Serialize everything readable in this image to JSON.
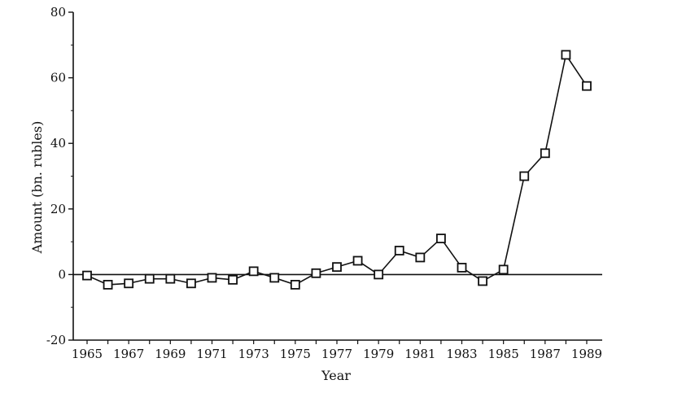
{
  "chart_data": {
    "type": "line",
    "xlabel": "Year",
    "ylabel": "Amount (bn. rubles)",
    "xlim": [
      1965,
      1989
    ],
    "ylim": [
      -20,
      80
    ],
    "x_ticks": [
      "1965",
      "1967",
      "1969",
      "1971",
      "1973",
      "1975",
      "1977",
      "1979",
      "1981",
      "1983",
      "1985",
      "1987",
      "1989"
    ],
    "y_ticks": [
      "80",
      "60",
      "40",
      "20",
      "0",
      "-20"
    ],
    "grid": false,
    "zero_line": true,
    "marker": "hollow-square",
    "series": [
      {
        "x": [
          1965,
          1966,
          1967,
          1968,
          1969,
          1970,
          1971,
          1972,
          1973,
          1974,
          1975,
          1976,
          1977,
          1978,
          1979,
          1980,
          1981,
          1982,
          1983,
          1984,
          1985,
          1986,
          1987,
          1988,
          1989
        ],
        "values": [
          -0.3,
          -3.1,
          -2.7,
          -1.3,
          -1.3,
          -2.7,
          -1.0,
          -1.6,
          1.0,
          -1.0,
          -3.1,
          0.4,
          2.3,
          4.2,
          0.0,
          7.3,
          5.2,
          11.0,
          2.1,
          -2.0,
          1.5,
          30.0,
          37.0,
          67.0,
          57.5
        ]
      }
    ],
    "colors": {
      "line": "#111111",
      "marker_stroke": "#111111",
      "marker_fill": "#ffffff"
    }
  }
}
